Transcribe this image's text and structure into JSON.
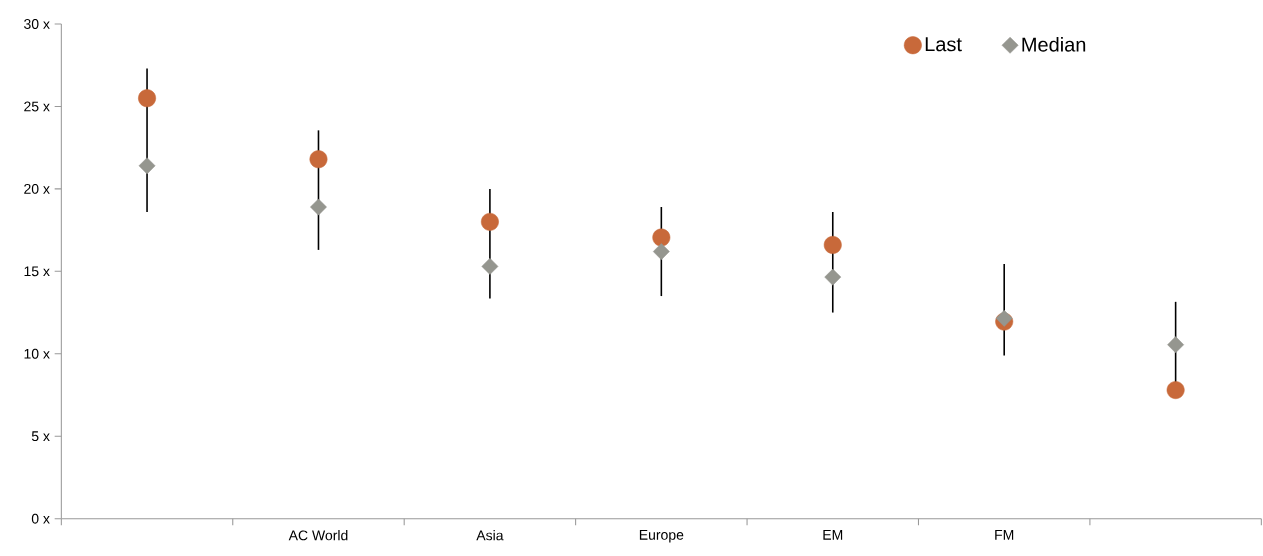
{
  "chart_data": {
    "type": "scatter",
    "categories": [
      null,
      "AC World",
      "Asia",
      "Europe",
      "EM",
      "FM",
      null
    ],
    "series": [
      {
        "name": "Last",
        "marker": "circle",
        "color": "#c8693a",
        "values": [
          25.5,
          21.8,
          18.0,
          17.05,
          16.6,
          11.95,
          7.8
        ],
        "errors": [
          [
            18.6,
            27.3
          ],
          [
            16.3,
            23.55
          ],
          [
            13.35,
            20.0
          ],
          [
            13.5,
            18.9
          ],
          [
            12.5,
            18.6
          ],
          [
            9.9,
            15.45
          ],
          [
            7.8,
            13.15
          ]
        ]
      },
      {
        "name": "Median",
        "marker": "diamond",
        "color": "#95968f",
        "values": [
          21.4,
          18.9,
          15.3,
          16.2,
          14.65,
          12.15,
          10.55
        ]
      }
    ],
    "ylim": [
      0,
      30
    ],
    "yticks": [
      {
        "value": 0,
        "label": "0 x"
      },
      {
        "value": 5,
        "label": "5 x"
      },
      {
        "value": 10,
        "label": "10 x"
      },
      {
        "value": 15,
        "label": "15 x"
      },
      {
        "value": 20,
        "label": "20 x"
      },
      {
        "value": 25,
        "label": "25 x"
      },
      {
        "value": 30,
        "label": "30 x"
      }
    ],
    "legend": "top right",
    "grid": false
  }
}
